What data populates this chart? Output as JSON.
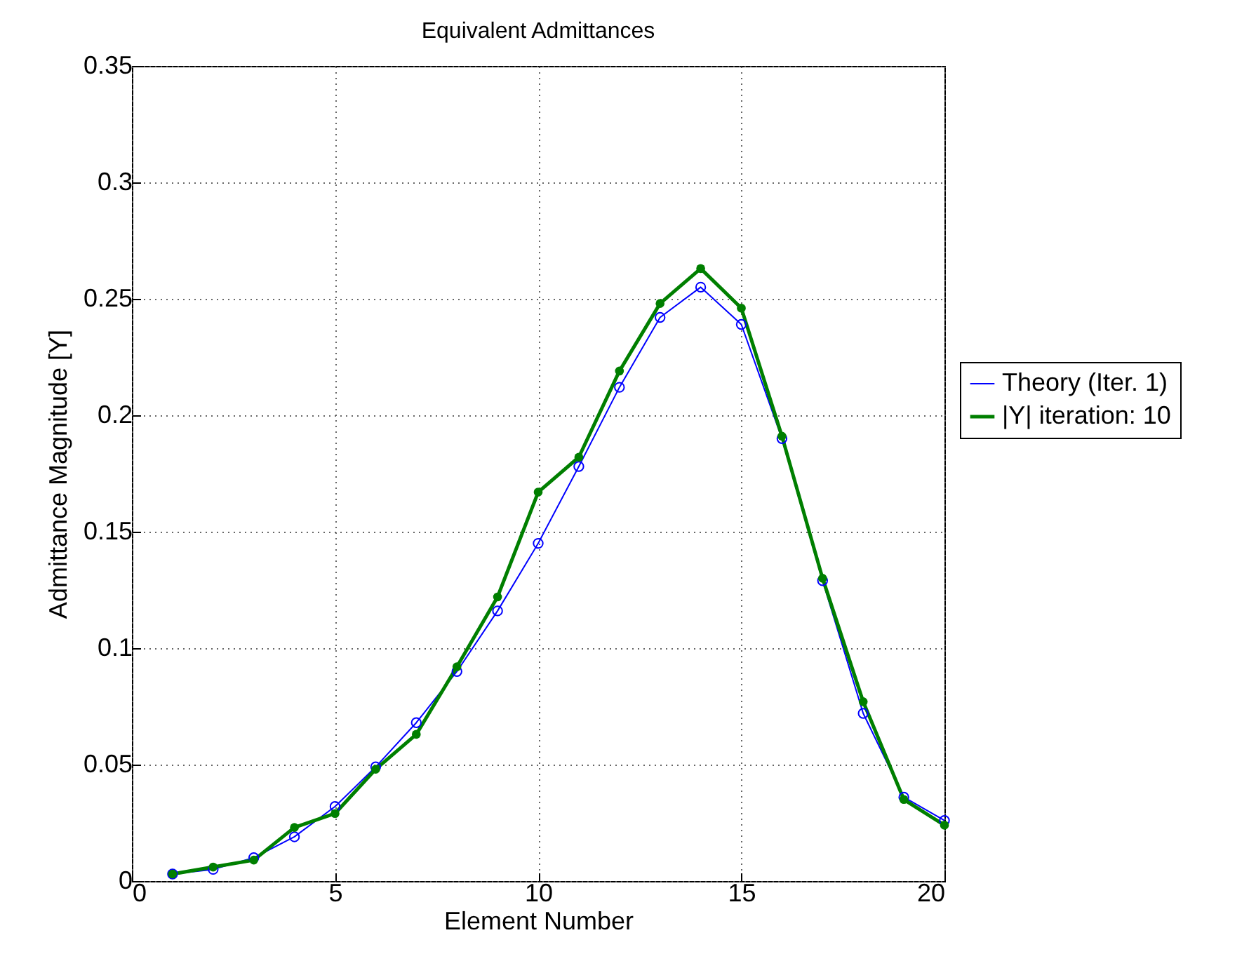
{
  "chart_data": {
    "type": "line",
    "title": "Equivalent Admittances",
    "xlabel": "Element Number",
    "ylabel": "Admittance Magnitude [Y]",
    "x": [
      1,
      2,
      3,
      4,
      5,
      6,
      7,
      8,
      9,
      10,
      11,
      12,
      13,
      14,
      15,
      16,
      17,
      18,
      19,
      20
    ],
    "series": [
      {
        "name": "Theory (Iter. 1)",
        "color": "#0000ff",
        "values": [
          0.003,
          0.005,
          0.01,
          0.019,
          0.032,
          0.049,
          0.068,
          0.09,
          0.116,
          0.145,
          0.178,
          0.212,
          0.242,
          0.255,
          0.239,
          0.19,
          0.129,
          0.072,
          0.036,
          0.026
        ]
      },
      {
        "name": "|Y| iteration: 10",
        "color": "#007f00",
        "values": [
          0.003,
          0.006,
          0.009,
          0.023,
          0.029,
          0.048,
          0.063,
          0.092,
          0.122,
          0.167,
          0.182,
          0.219,
          0.248,
          0.263,
          0.246,
          0.191,
          0.13,
          0.077,
          0.035,
          0.024
        ]
      }
    ],
    "xlim": [
      0,
      20
    ],
    "xticks": [
      0,
      5,
      10,
      15,
      20
    ],
    "ylim": [
      0,
      0.35
    ],
    "yticks": [
      0,
      0.05,
      0.1,
      0.15,
      0.2,
      0.25,
      0.3,
      0.35
    ],
    "grid": true,
    "legend": "right",
    "marker": "circle",
    "line_style": "solid"
  }
}
